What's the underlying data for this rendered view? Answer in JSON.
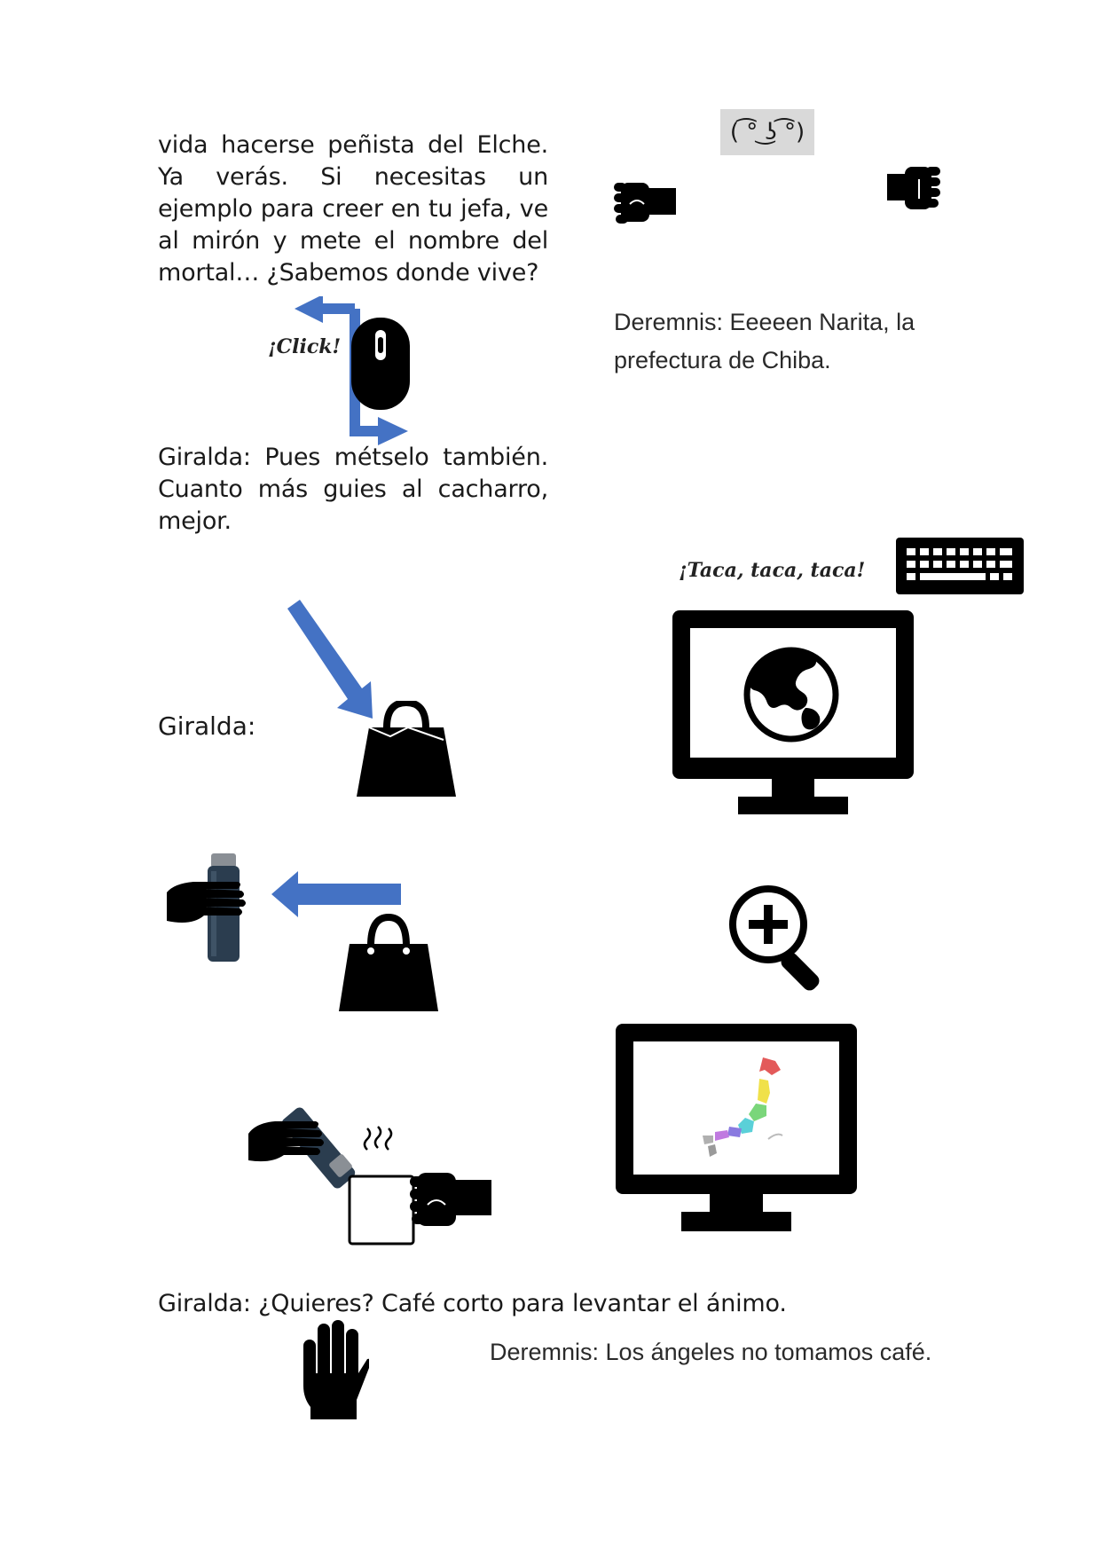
{
  "left_column": {
    "paragraph1": "vida hacerse peñista del Elche. Ya verás. Si necesitas un ejemplo para creer en tu jefa, ve al mirón y mete el nombre del mortal… ¿Sabemos donde vive?",
    "click_sfx": "¡Click!",
    "paragraph2": "Giralda: Pues métselo también. Cuanto más guies al cacharro, mejor.",
    "giralda_label": "Giralda:",
    "cafe_line": "Giralda: ¿Quieres? Café corto para levantar el ánimo."
  },
  "right_column": {
    "emoticon": "( ͡° ͜ʖ ͡°)",
    "deremnis_line1": "Deremnis: Eeeeen Narita, la prefectura de Chiba.",
    "typing_sfx": "¡Taca, taca, taca!",
    "deremnis_line2": "Deremnis: Los ángeles no tomamos café."
  },
  "icons": [
    "fist-bump-left-icon",
    "fist-bump-right-icon",
    "mouse-icon",
    "blue-arrow-icon",
    "keyboard-icon",
    "monitor-globe-icon",
    "handbag-icon",
    "thermos-hand-icon",
    "zoom-in-icon",
    "monitor-japan-map-icon",
    "coffee-cup-icon",
    "stop-hand-icon"
  ],
  "colors": {
    "text": "#1a1a1a",
    "arrow_blue": "#4472c4",
    "icon_black": "#000000"
  }
}
